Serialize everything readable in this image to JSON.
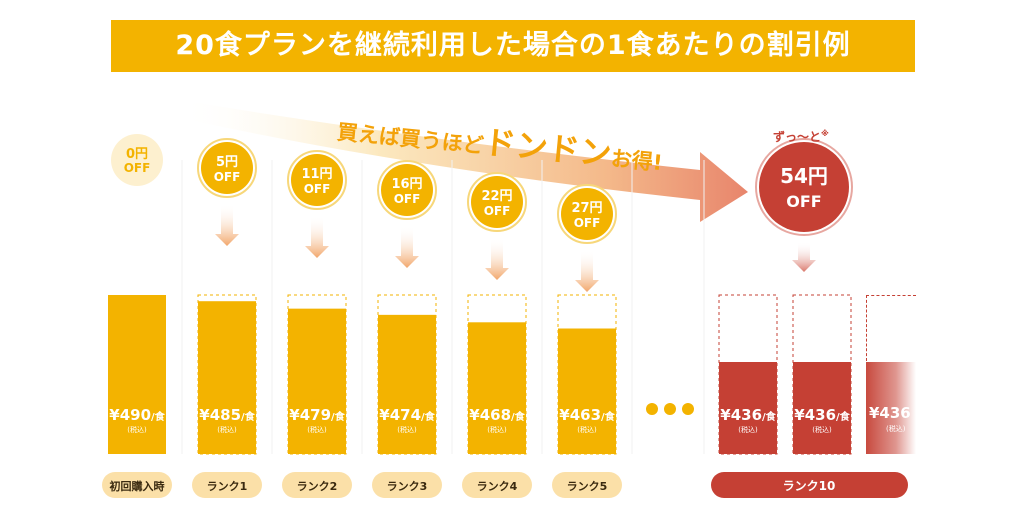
{
  "banner": {
    "title": "20食プランを継続利用した場合の1食あたりの割引例"
  },
  "tagline": {
    "part1": "買えば買うほど",
    "part2": "ドンドン",
    "part3": "お得!"
  },
  "note": {
    "zutto": "ずっ〜と",
    "mark": "※"
  },
  "colors": {
    "gold": "#f3b300",
    "red": "#c54034",
    "pill": "#fbe0a8",
    "arrow": "#f2a66a"
  },
  "chart_data": {
    "type": "bar",
    "unit": "円/食",
    "categories": [
      "初回購入時",
      "ランク1",
      "ランク2",
      "ランク3",
      "ランク4",
      "ランク5",
      "ランク10"
    ],
    "values": [
      490,
      485,
      479,
      474,
      468,
      463,
      436
    ],
    "discounts": [
      0,
      5,
      11,
      16,
      22,
      27,
      54
    ],
    "price_labels": [
      "¥490",
      "¥485",
      "¥479",
      "¥474",
      "¥468",
      "¥463",
      "¥436"
    ],
    "price_suffix": "/食",
    "tax_label": "(税込)",
    "discount_labels": [
      "0円",
      "5円",
      "11円",
      "16円",
      "22円",
      "27円",
      "54円"
    ],
    "off_label": "OFF",
    "ellipsis": "•••"
  },
  "ghost": {
    "price": "¥436",
    "tax": "(税込)"
  }
}
